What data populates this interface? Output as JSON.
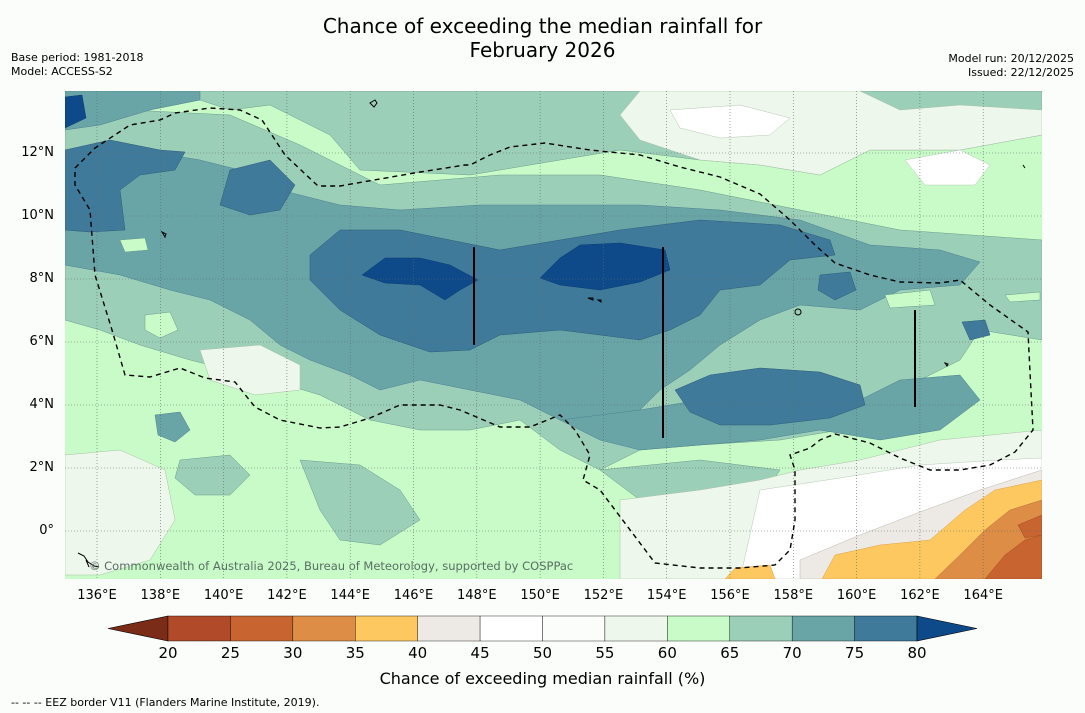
{
  "title_line1": "Chance of exceeding the median rainfall for",
  "title_line2": "February 2026",
  "meta_left": [
    "Base period: 1981-2018",
    "Model: ACCESS-S2"
  ],
  "meta_right": [
    "Model run: 20/12/2025",
    "Issued: 22/12/2025"
  ],
  "lat_labels": [
    "12°N",
    "10°N",
    "8°N",
    "6°N",
    "4°N",
    "2°N",
    "0°"
  ],
  "lon_labels": [
    "136°E",
    "138°E",
    "140°E",
    "142°E",
    "144°E",
    "146°E",
    "148°E",
    "150°E",
    "152°E",
    "154°E",
    "156°E",
    "158°E",
    "160°E",
    "162°E",
    "164°E"
  ],
  "copyright": "© Commonwealth of Australia 2025, Bureau of Meteorology, supported by COSPPac",
  "colorbar": {
    "ticks": [
      "20",
      "25",
      "30",
      "35",
      "40",
      "45",
      "50",
      "55",
      "60",
      "65",
      "70",
      "75",
      "80"
    ],
    "colors": [
      "#7a2c18",
      "#b04a28",
      "#c8642f",
      "#dd8d45",
      "#fdc860",
      "#ede9e4",
      "#ffffff",
      "#fbfdfa",
      "#edf7eb",
      "#c8fbc8",
      "#9ccfb8",
      "#69a4a6",
      "#3f7a9a",
      "#0e4a8a"
    ],
    "label": "Chance of exceeding median rainfall (%)"
  },
  "footer": "--  --  -- EEZ border V11 (Flanders Marine Institute, 2019).",
  "icons": {
    "eez": "dashed-border-line"
  }
}
